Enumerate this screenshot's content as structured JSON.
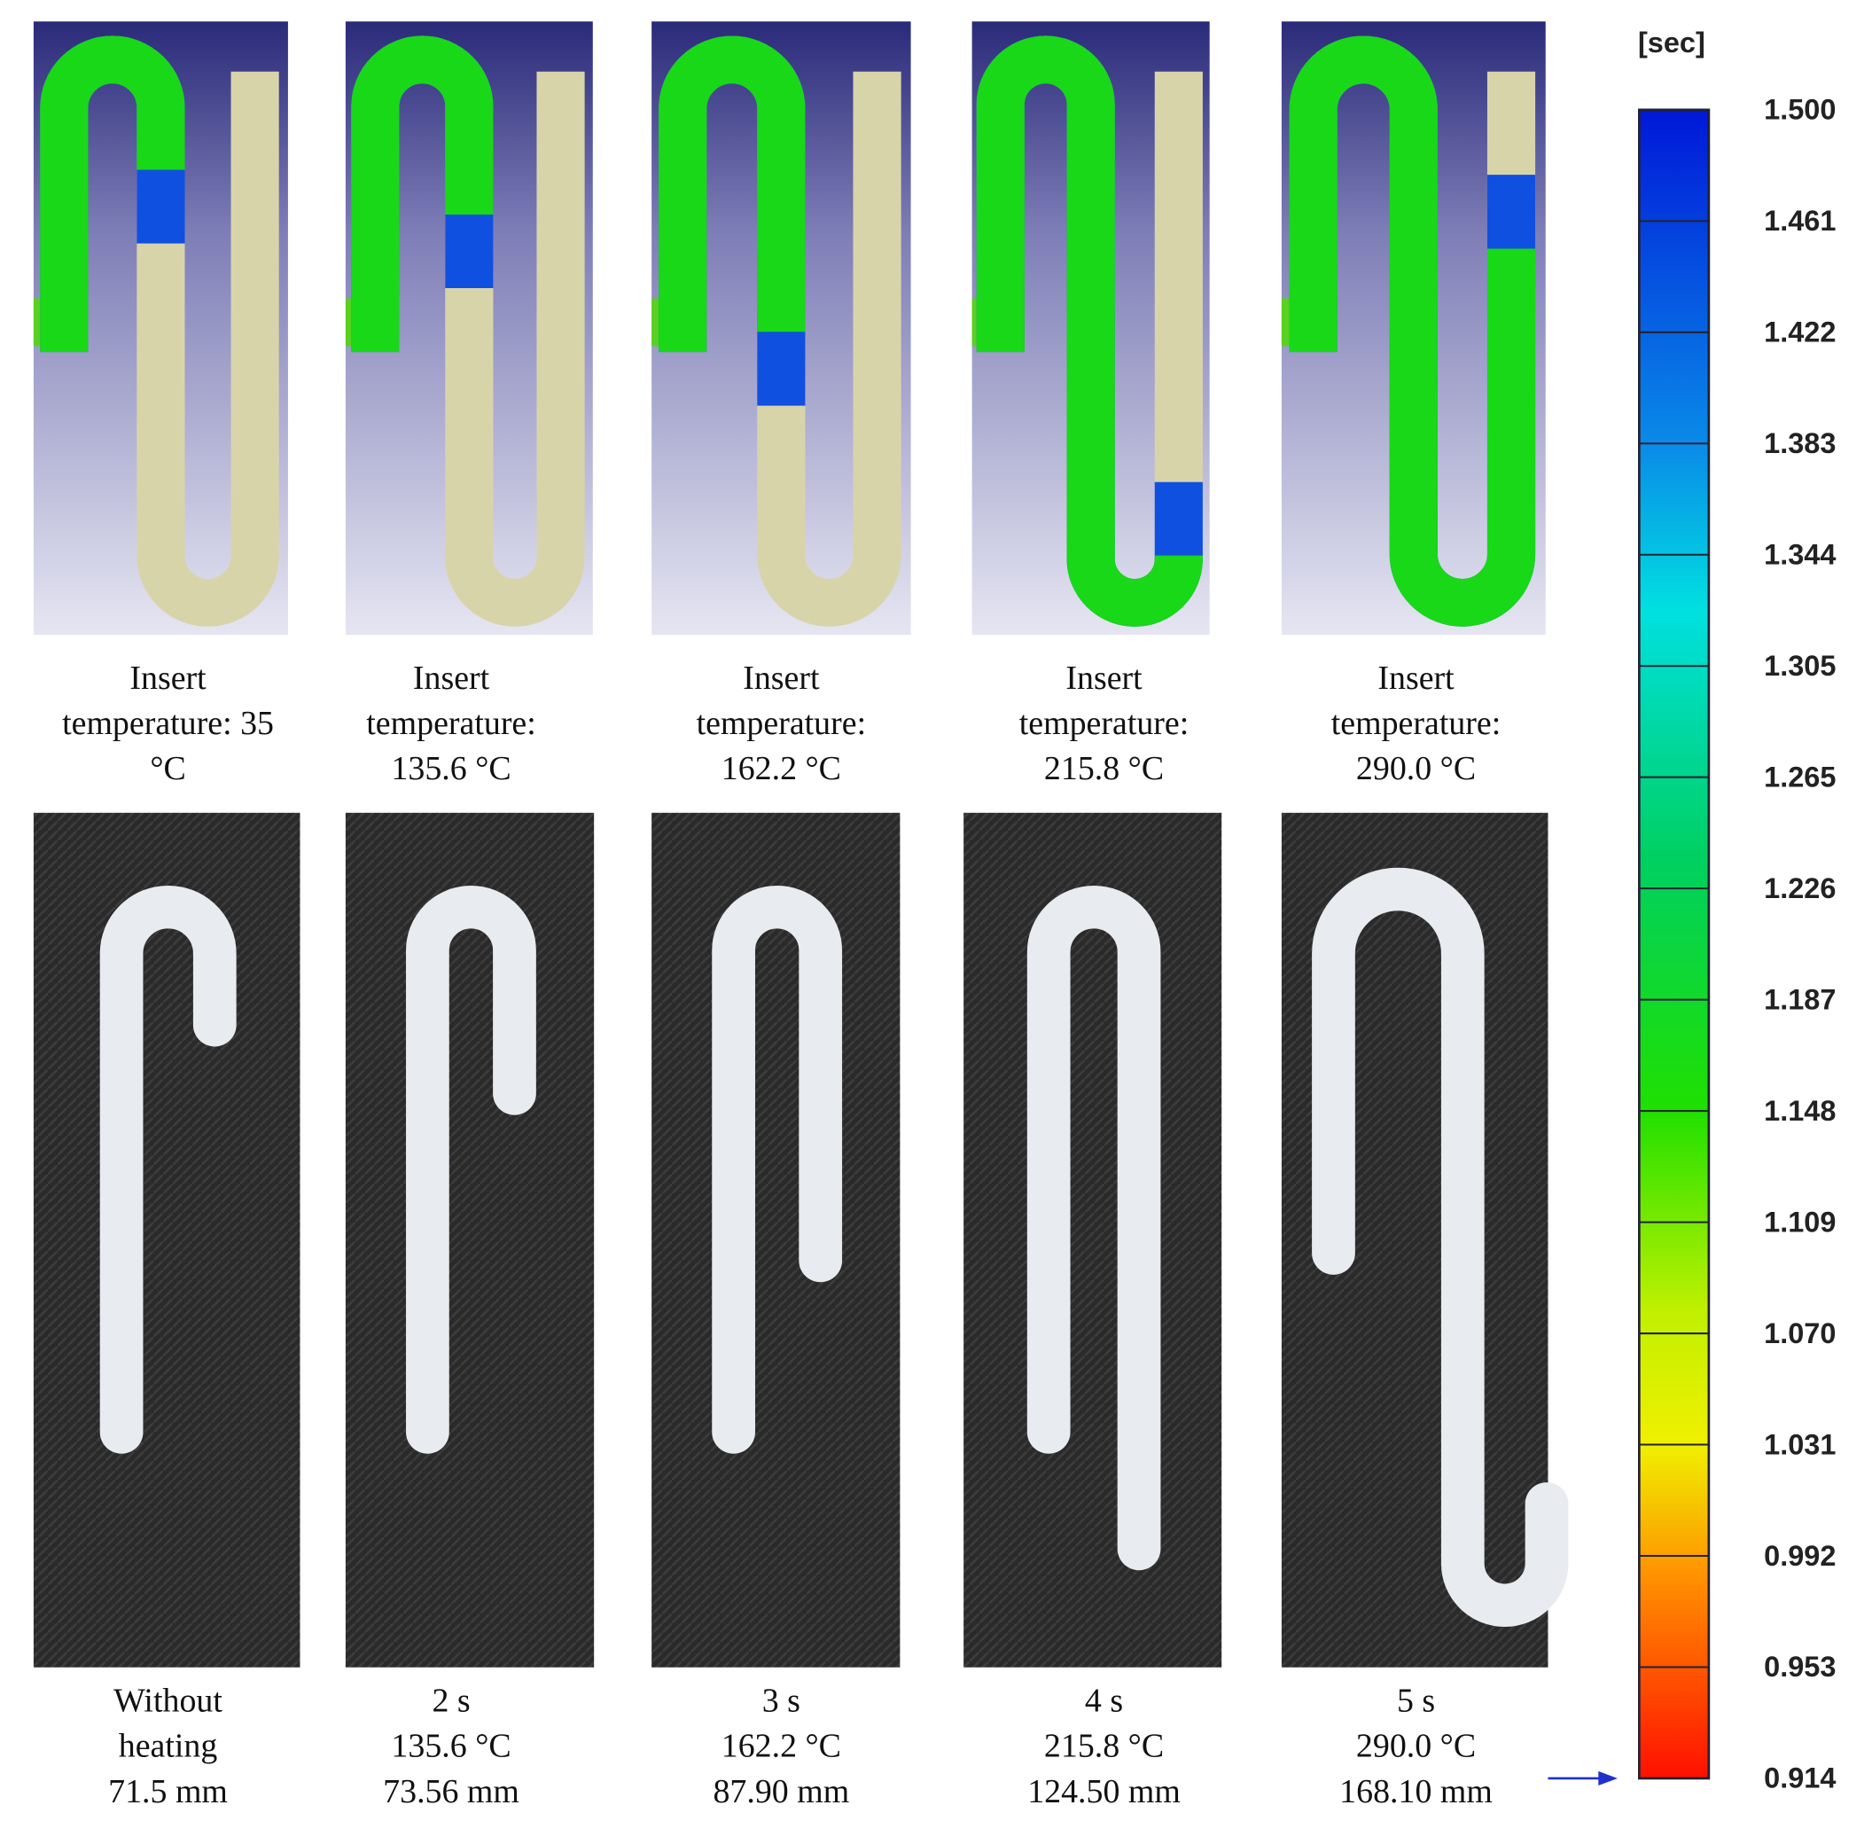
{
  "simulation_panels": [
    {
      "caption": [
        "Insert",
        "temperature: 35",
        "°C"
      ]
    },
    {
      "caption": [
        "Insert",
        "temperature:",
        "135.6 °C"
      ]
    },
    {
      "caption": [
        "Insert",
        "temperature:",
        "162.2 °C"
      ]
    },
    {
      "caption": [
        "Insert",
        "temperature:",
        "215.8 °C"
      ]
    },
    {
      "caption": [
        "Insert",
        "temperature:",
        "290.0 °C"
      ]
    }
  ],
  "photo_panels": [
    {
      "caption": [
        "Without",
        "heating",
        "71.5 mm"
      ]
    },
    {
      "caption": [
        "2 s",
        "135.6 °C",
        "73.56 mm"
      ]
    },
    {
      "caption": [
        "3 s",
        "162.2 °C",
        "87.90 mm"
      ]
    },
    {
      "caption": [
        "4 s",
        "215.8 °C",
        "124.50 mm"
      ]
    },
    {
      "caption": [
        "5 s",
        "290.0 °C",
        "168.10 mm"
      ]
    }
  ],
  "colorbar": {
    "unit": "[sec]",
    "ticks": [
      "1.500",
      "1.461",
      "1.422",
      "1.383",
      "1.344",
      "1.305",
      "1.265",
      "1.226",
      "1.187",
      "1.148",
      "1.109",
      "1.070",
      "1.031",
      "0.992",
      "0.953",
      "0.914"
    ]
  }
}
